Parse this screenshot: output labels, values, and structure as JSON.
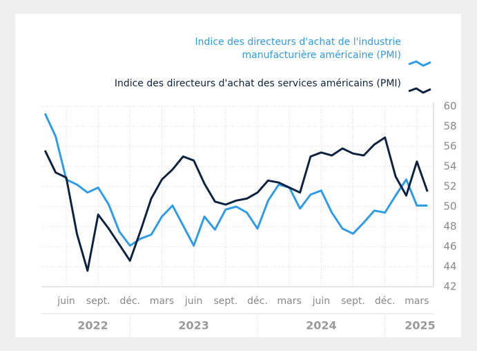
{
  "chart_data": {
    "type": "line",
    "categories": [
      null,
      null,
      "juin",
      null,
      null,
      "sept.",
      null,
      null,
      "déc.",
      null,
      null,
      "mars",
      null,
      null,
      "juin",
      null,
      null,
      "sept.",
      null,
      null,
      "déc.",
      null,
      null,
      "mars",
      null,
      null,
      "juin",
      null,
      null,
      "sept.",
      null,
      null,
      "déc.",
      null,
      null,
      "mars",
      null
    ],
    "years": [
      "2022",
      "2023",
      "2024",
      "2025"
    ],
    "series": [
      {
        "name": "Indice des directeurs d'achat de l'industrie manufacturière américaine (PMI)",
        "color": "#2e9be6",
        "values": [
          59.3,
          57.0,
          52.7,
          52.2,
          51.4,
          51.9,
          50.2,
          47.5,
          46.1,
          46.8,
          47.2,
          49.0,
          50.1,
          48.1,
          46.1,
          49.0,
          47.7,
          49.7,
          50.0,
          49.4,
          47.8,
          50.6,
          52.2,
          51.9,
          49.8,
          51.2,
          51.6,
          49.4,
          47.8,
          47.3,
          48.4,
          49.6,
          49.4,
          51.1,
          52.7,
          50.1,
          50.1
        ]
      },
      {
        "name": "Indice des directeurs d'achat des services américains (PMI)",
        "color": "#0d2240",
        "values": [
          55.6,
          53.4,
          52.9,
          47.3,
          43.6,
          49.2,
          47.8,
          46.2,
          44.6,
          47.6,
          50.8,
          52.7,
          53.7,
          55.0,
          54.6,
          52.3,
          50.5,
          50.2,
          50.6,
          50.8,
          51.4,
          52.6,
          52.4,
          51.9,
          51.4,
          55.0,
          55.4,
          55.1,
          55.8,
          55.3,
          55.1,
          56.2,
          56.9,
          53.0,
          51.1,
          54.5,
          51.5
        ]
      }
    ],
    "ylim": [
      42,
      60
    ],
    "yticks": [
      42,
      44,
      46,
      48,
      50,
      52,
      54,
      56,
      58,
      60
    ],
    "grid": true,
    "legend": "top-right",
    "y_axis_side": "right"
  }
}
